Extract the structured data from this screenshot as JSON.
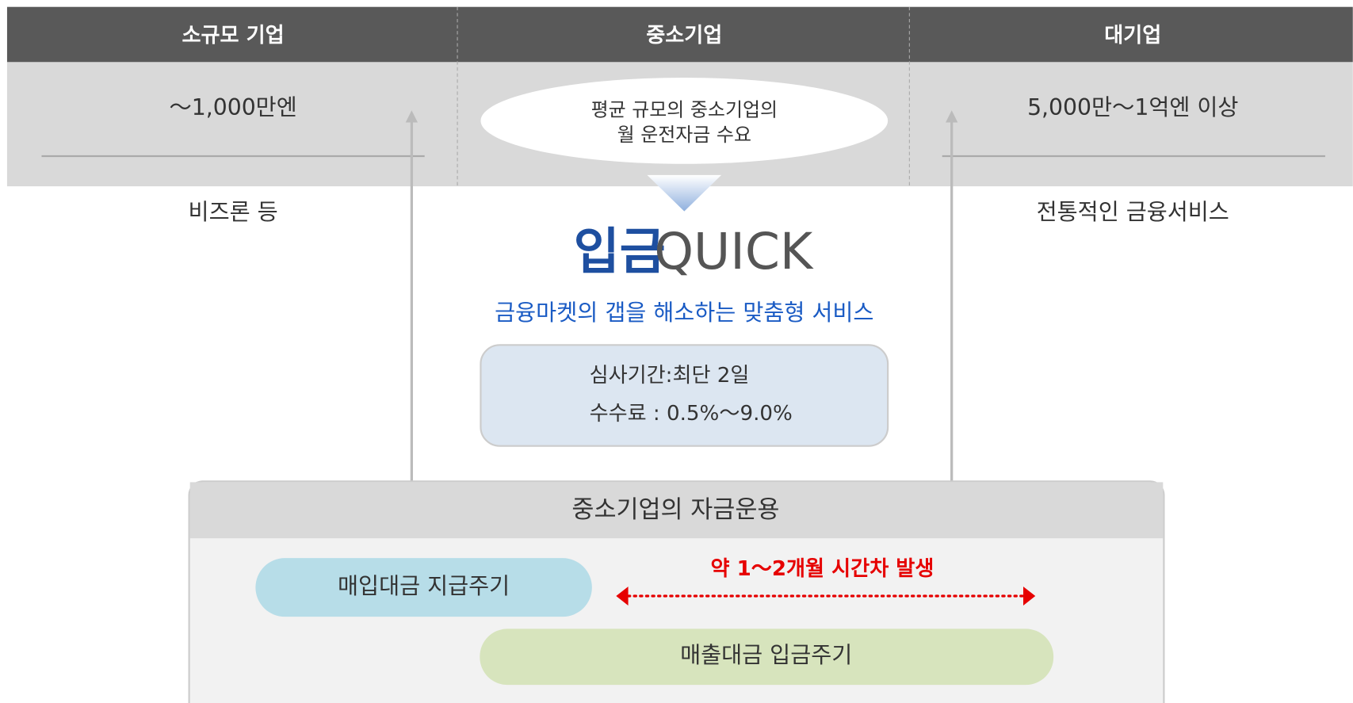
{
  "header": {
    "columns": [
      "소규모 기업",
      "중소기업",
      "대기업"
    ]
  },
  "ranges": {
    "small": "～1,000만엔",
    "medium": [
      "평균 규모의 중소기업의",
      "월 운전자금 수요"
    ],
    "large": "5,000만～1억엔 이상"
  },
  "services": {
    "small": "비즈론 등",
    "large": "전통적인 금융서비스"
  },
  "product": {
    "logo": [
      "입금",
      "QUICK"
    ],
    "tagline": "금융마켓의 갭을 해소하는 맞춤형 서비스",
    "details": [
      "심사기간:최단 2일",
      "수수료 : 0.5%～9.0%"
    ]
  },
  "cashflow": {
    "title": "중소기업의 자금운용",
    "payment": "매입대금 지급주기",
    "receipt": "매출대금 입금주기",
    "gap": "약 1～2개월 시간차 발생"
  }
}
